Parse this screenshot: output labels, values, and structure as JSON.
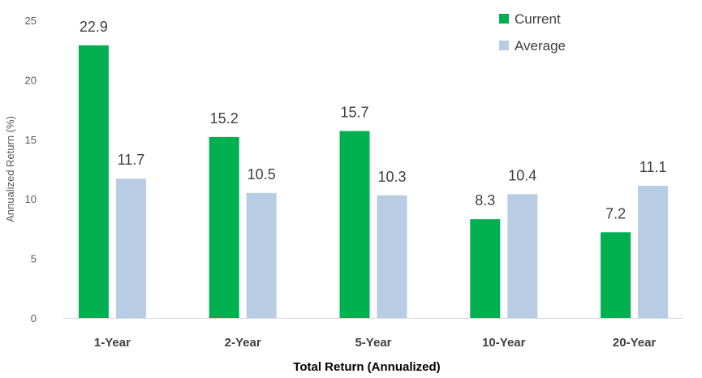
{
  "chart_data": {
    "type": "bar",
    "categories": [
      "1-Year",
      "2-Year",
      "5-Year",
      "10-Year",
      "20-Year"
    ],
    "series": [
      {
        "name": "Current",
        "color": "#00b050",
        "values": [
          22.9,
          15.2,
          15.7,
          8.3,
          7.2
        ]
      },
      {
        "name": "Average",
        "color": "#b8cce4",
        "values": [
          11.7,
          10.5,
          10.3,
          10.4,
          11.1
        ]
      }
    ],
    "data_labels": {
      "Current": [
        "22.9",
        "15.2",
        "15.7",
        "8.3",
        "7.2"
      ],
      "Average": [
        "11.7",
        "10.5",
        "10.3",
        "10.4",
        "11.1"
      ]
    },
    "title": "",
    "xlabel": "Total Return (Annualized)",
    "ylabel": "Annualized Return (%)",
    "ylim": [
      0,
      25
    ],
    "yticks": [
      "0",
      "5",
      "10",
      "15",
      "20",
      "25"
    ],
    "grid": false,
    "legend_position": "top-right"
  }
}
